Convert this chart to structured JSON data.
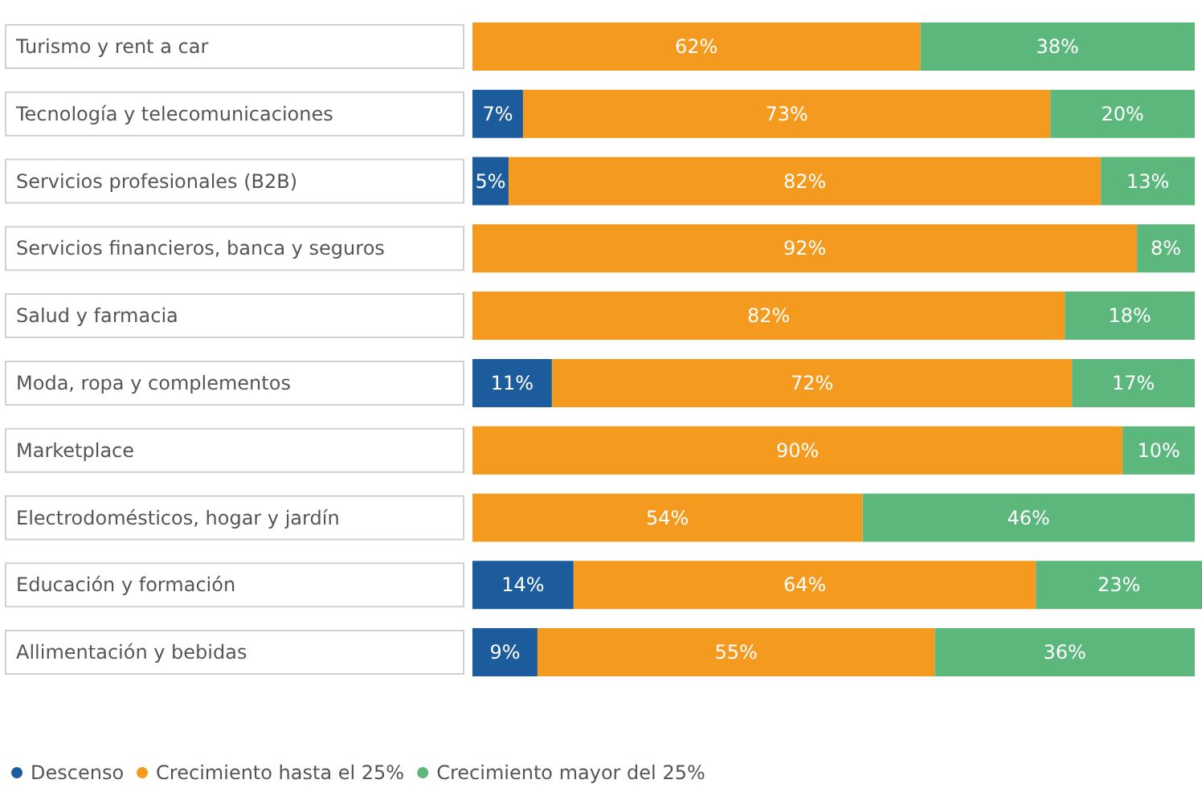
{
  "chart_data": {
    "type": "bar",
    "orientation": "horizontal",
    "stacked": true,
    "legend": "bottom left",
    "categories": [
      "Turismo y rent a car",
      "Tecnología y telecomunicaciones",
      "Servicios profesionales (B2B)",
      "Servicios financieros, banca y seguros",
      "Salud y farmacia",
      "Moda, ropa y complementos",
      "Marketplace",
      "Electrodomésticos, hogar y jardín",
      "Educación y formación",
      "Allimentación y bebidas"
    ],
    "series": [
      {
        "name": "Descenso",
        "color": "#1c5c9c",
        "values": [
          null,
          7,
          5,
          null,
          null,
          11,
          null,
          null,
          14,
          9
        ],
        "value_labels": [
          null,
          "7%",
          "5%",
          null,
          null,
          "11%",
          null,
          null,
          "14%",
          "9%"
        ]
      },
      {
        "name": "Crecimiento hasta el 25%",
        "color": "#f39a1f",
        "values": [
          62,
          73,
          82,
          92,
          82,
          72,
          90,
          54,
          64,
          55
        ],
        "value_labels": [
          "62%",
          "73%",
          "82%",
          "92%",
          "82%",
          "72%",
          "90%",
          "54%",
          "64%",
          "55%"
        ]
      },
      {
        "name": "Crecimiento mayor del 25%",
        "color": "#5bb77b",
        "values": [
          38,
          20,
          13,
          8,
          18,
          17,
          10,
          46,
          23,
          36
        ],
        "value_labels": [
          "38%",
          "20%",
          "13%",
          "8%",
          "18%",
          "17%",
          "10%",
          "46%",
          "23%",
          "36%"
        ]
      }
    ]
  }
}
